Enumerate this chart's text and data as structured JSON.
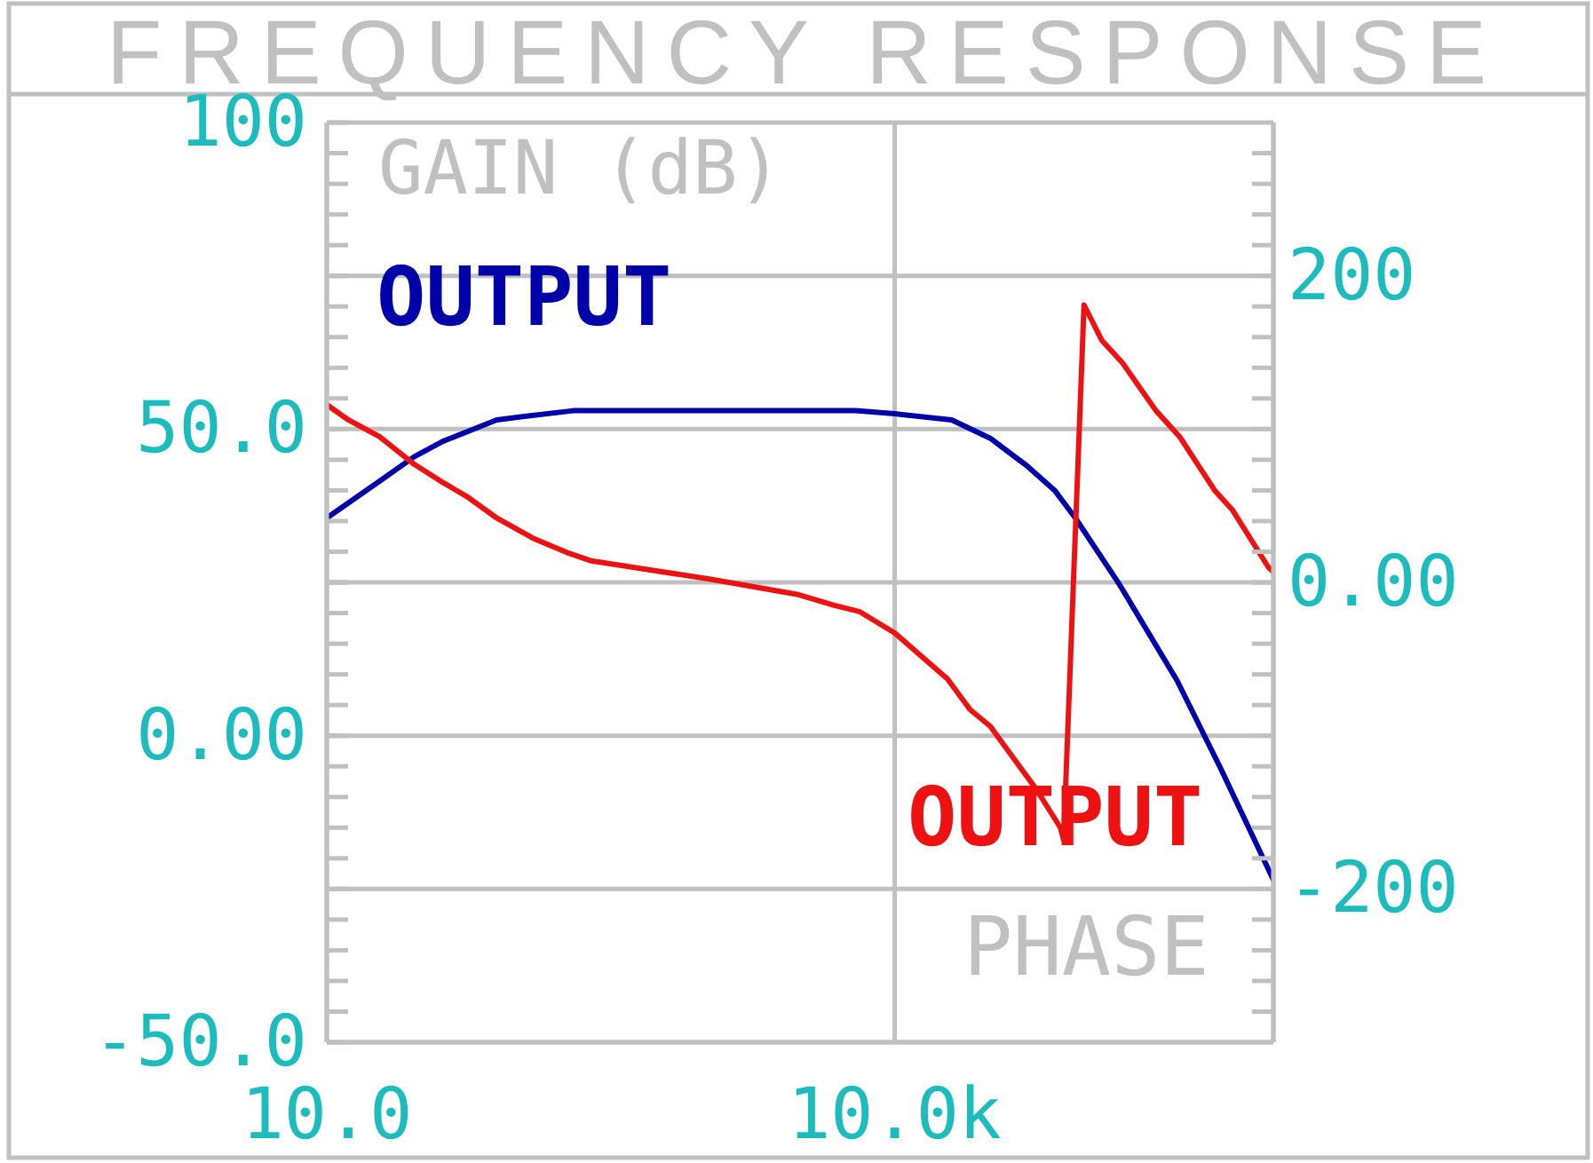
{
  "chart_data": {
    "type": "line",
    "title": "FREQUENCY RESPONSE",
    "ylabel": "GAIN (dB)",
    "y2label": "PHASE",
    "series": [
      {
        "name": "OUTPUT",
        "color": "#0000aa",
        "x": [
          10,
          19,
          29,
          41,
          79,
          106,
          200,
          1000,
          6200,
          10000,
          20000,
          32000,
          39000,
          50000,
          70000,
          90000,
          155000,
          310000,
          530000,
          1000000
        ],
        "values": [
          35.5,
          41.5,
          45.5,
          48,
          51.5,
          52,
          53,
          53,
          53,
          52.5,
          51.5,
          48.5,
          46.5,
          44,
          40,
          35.5,
          24.5,
          9,
          -5.5,
          -23.5
        ]
      },
      {
        "name": "OUTPUT",
        "color": "#ee1111",
        "axis": "y2",
        "x": [
          10,
          13,
          19,
          29,
          40,
          55,
          79,
          122,
          190,
          250,
          520,
          1070,
          3100,
          4800,
          6500,
          10000,
          15000,
          19000,
          25000,
          32000,
          42000,
          56000,
          75000,
          78000,
          100000,
          124000,
          160000,
          240000,
          320000,
          490000,
          610000,
          940000,
          1000000
        ],
        "values": [
          116,
          106,
          95,
          77,
          66,
          56,
          42,
          29,
          19,
          14,
          8,
          2,
          -8,
          -15,
          -19,
          -33,
          -52,
          -63,
          -83,
          -94,
          -114,
          -135,
          -160,
          -168,
          181,
          158,
          143,
          112,
          95,
          60,
          47,
          10,
          7
        ]
      }
    ],
    "log": "x",
    "xlim": [
      10,
      1000000
    ],
    "xticks": [
      {
        "value": 10,
        "label": "10.0"
      },
      {
        "value": 10000,
        "label": "10.0k"
      }
    ],
    "ylim": [
      -50,
      100
    ],
    "yticks": [
      100,
      {
        "value": 75,
        "label": null
      },
      {
        "value": 50,
        "label": "50.0"
      },
      {
        "value": 25,
        "label": null
      },
      {
        "value": 0,
        "label": "0.00"
      },
      {
        "value": -25,
        "label": null
      },
      {
        "value": -50,
        "label": "-50.0"
      }
    ],
    "y2lim": [
      -300,
      300
    ],
    "y2ticks": [
      {
        "value": 280,
        "label": null
      },
      {
        "value": 260,
        "label": null
      },
      {
        "value": 240,
        "label": null
      },
      {
        "value": 220,
        "label": null
      },
      200,
      {
        "value": 180,
        "label": null
      },
      {
        "value": 160,
        "label": null
      },
      {
        "value": 140,
        "label": null
      },
      {
        "value": 120,
        "label": null
      },
      {
        "value": 100,
        "label": null
      },
      {
        "value": 80,
        "label": null
      },
      {
        "value": 60,
        "label": null
      },
      {
        "value": 40,
        "label": null
      },
      {
        "value": 20,
        "label": null
      },
      {
        "value": 0,
        "label": "0.00"
      },
      {
        "value": -20,
        "label": null
      },
      {
        "value": -40,
        "label": null
      },
      {
        "value": -60,
        "label": null
      },
      {
        "value": -80,
        "label": null
      },
      {
        "value": -100,
        "label": null
      },
      {
        "value": -120,
        "label": null
      },
      {
        "value": -140,
        "label": null
      },
      {
        "value": -160,
        "label": null
      },
      {
        "value": -180,
        "label": null
      },
      -200,
      {
        "value": -220,
        "label": null
      },
      {
        "value": -240,
        "label": null
      },
      {
        "value": -260,
        "label": null
      },
      {
        "value": -280,
        "label": null
      }
    ],
    "grid": true,
    "marker": "none"
  }
}
